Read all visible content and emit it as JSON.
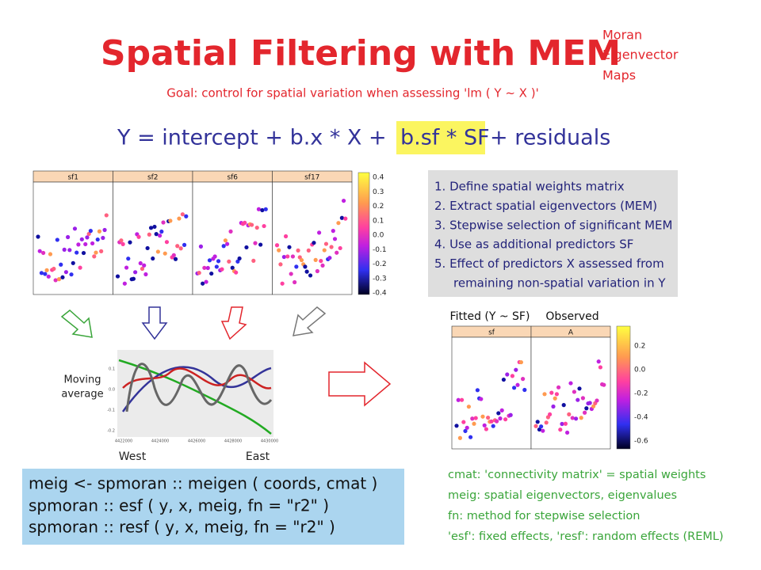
{
  "title": "Spatial Filtering with MEM",
  "side_note": [
    "Moran",
    "Eigenvector",
    "Maps"
  ],
  "goal": "Goal: control for spatial variation when assessing  'lm ( Y ~ X )'",
  "equation": {
    "before": "Y  =  intercept  +  b.x * X  +",
    "highlight": "b.sf * SF",
    "after": "+ residuals"
  },
  "panel_plot": {
    "panels": [
      "sf1",
      "sf2",
      "sf6",
      "sf17"
    ],
    "colorbar_ticks": [
      "0.4",
      "0.3",
      "0.2",
      "0.1",
      "0.0",
      "-0.1",
      "-0.2",
      "-0.3",
      "-0.4"
    ]
  },
  "steps": [
    "1.  Define spatial weights matrix",
    "2.  Extract spatial eigenvectors (MEM)",
    "3.  Stepwise selection of significant MEM",
    "4.  Use as additional predictors SF",
    "5.  Effect of predictors X assessed from",
    "remaining non-spatial variation in Y"
  ],
  "moving_average": {
    "label": [
      "Moving",
      "average"
    ],
    "y_ticks": [
      "0.1",
      "0.0",
      "-0.1",
      "-0.2"
    ],
    "x_ticks": [
      "4422000",
      "4424000",
      "4426000",
      "4428000",
      "4430000"
    ],
    "west": "West",
    "east": "East"
  },
  "fitted_plot": {
    "titles": [
      "Fitted (Y ~ SF)",
      "Observed"
    ],
    "panels": [
      "sf",
      "A"
    ],
    "colorbar_ticks": [
      "0.2",
      "0.0",
      "-0.2",
      "-0.4",
      "-0.6"
    ]
  },
  "code": [
    "meig <- spmoran :: meigen ( coords, cmat )",
    "spmoran :: esf ( y, x, meig, fn = \"r2\" )",
    "spmoran :: resf ( y, x, meig, fn = \"r2\" )"
  ],
  "notes": [
    "cmat:  'connectivity matrix' = spatial weights",
    "meig:  spatial eigenvectors, eigenvalues",
    "fn:  method for stepwise selection",
    "'esf': fixed effects, 'resf': random effects (REML)"
  ]
}
